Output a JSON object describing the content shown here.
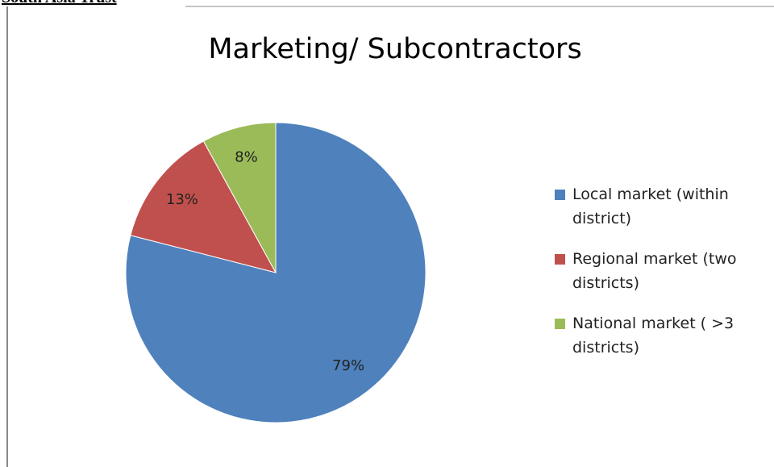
{
  "header": {
    "title": "South Asia Trust"
  },
  "chart_data": {
    "type": "pie",
    "title": "Marketing/ Subcontractors",
    "categories": [
      "Local market (within district)",
      "Regional market (two districts)",
      "National market ( >3 districts)"
    ],
    "values": [
      79,
      13,
      8
    ],
    "value_labels": [
      "79%",
      "13%",
      "8%"
    ],
    "colors": [
      "#4f81bd",
      "#c0504d",
      "#9bbb59"
    ],
    "legend": "right"
  }
}
